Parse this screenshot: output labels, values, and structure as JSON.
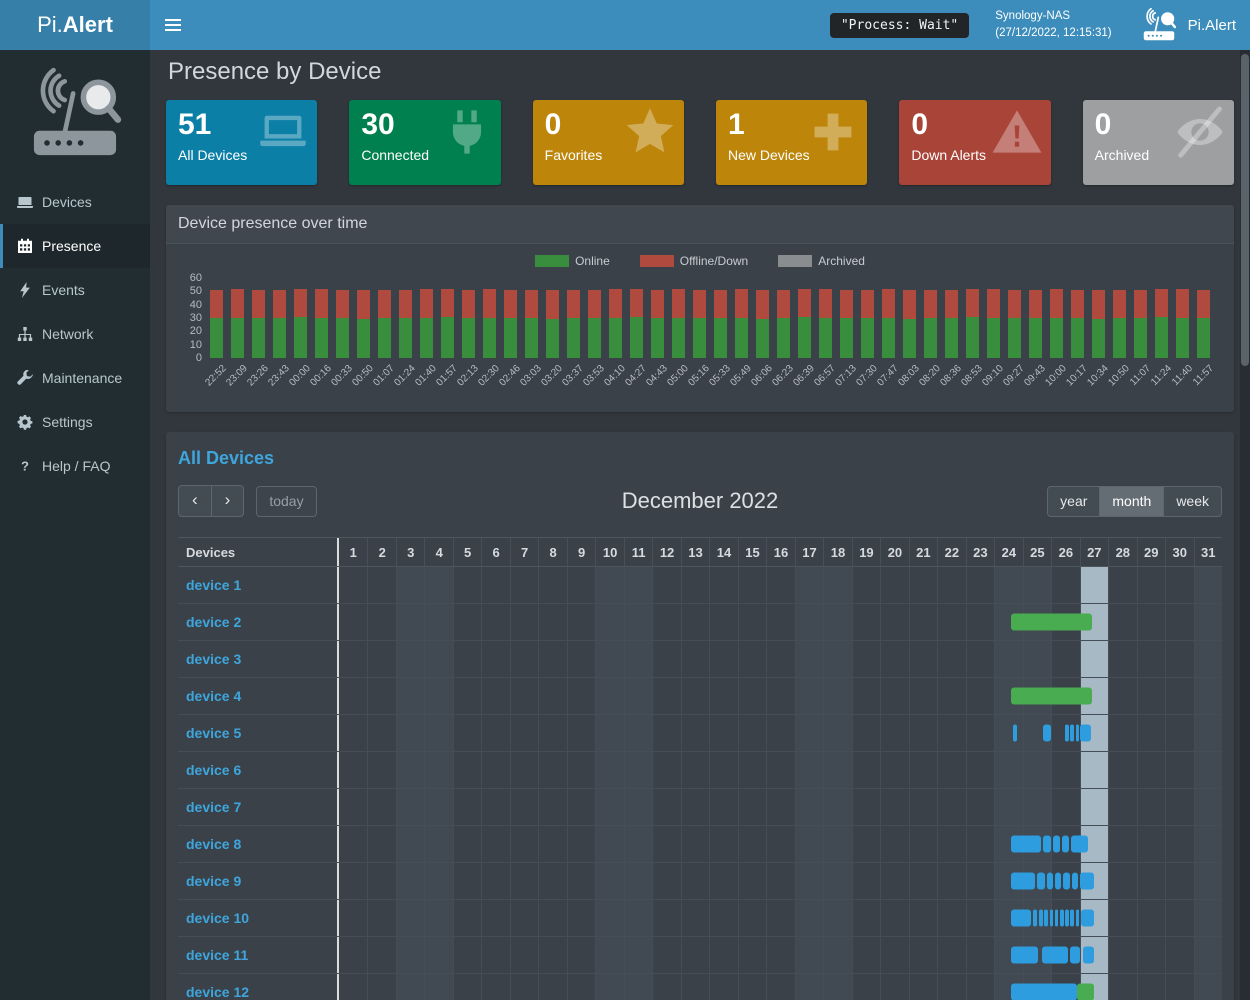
{
  "navbar": {
    "brand_pre": "Pi.",
    "brand_bold": "Alert",
    "process_status": "\"Process: Wait\"",
    "host_name": "Synology-NAS",
    "host_time": "(27/12/2022, 12:15:31)",
    "right_brand": "Pi.Alert"
  },
  "sidebar": {
    "items": [
      {
        "label": "Devices",
        "icon": "laptop-icon",
        "active": false
      },
      {
        "label": "Presence",
        "icon": "calendar-icon",
        "active": true
      },
      {
        "label": "Events",
        "icon": "bolt-icon",
        "active": false
      },
      {
        "label": "Network",
        "icon": "network-icon",
        "active": false
      },
      {
        "label": "Maintenance",
        "icon": "wrench-icon",
        "active": false
      },
      {
        "label": "Settings",
        "icon": "gear-icon",
        "active": false
      },
      {
        "label": "Help / FAQ",
        "icon": "question-icon",
        "active": false
      }
    ]
  },
  "page": {
    "title": "Presence by Device"
  },
  "summary_cards": [
    {
      "value": "51",
      "label": "All Devices",
      "color": "#0c7fa6",
      "icon": "laptop-icon"
    },
    {
      "value": "30",
      "label": "Connected",
      "color": "#00804e",
      "icon": "plug-icon"
    },
    {
      "value": "0",
      "label": "Favorites",
      "color": "#bd860b",
      "icon": "star-icon"
    },
    {
      "value": "1",
      "label": "New Devices",
      "color": "#bd860b",
      "icon": "plus-icon"
    },
    {
      "value": "0",
      "label": "Down Alerts",
      "color": "#a94438",
      "icon": "warning-icon"
    },
    {
      "value": "0",
      "label": "Archived",
      "color": "#9e9fa1",
      "icon": "eye-slash-icon"
    }
  ],
  "presence_panel": {
    "title": "Device presence over time"
  },
  "chart_data": {
    "type": "bar",
    "stacked": true,
    "title": "Device presence over time",
    "ylim": [
      0,
      60
    ],
    "y_ticks": [
      0,
      10,
      20,
      30,
      40,
      50,
      60
    ],
    "legend_position": "top",
    "grid": false,
    "categories": [
      "22:52",
      "23:09",
      "23:26",
      "23:43",
      "00:00",
      "00:16",
      "00:33",
      "00:50",
      "01:07",
      "01:24",
      "01:40",
      "01:57",
      "02:13",
      "02:30",
      "02:46",
      "03:03",
      "03:20",
      "03:37",
      "03:53",
      "04:10",
      "04:27",
      "04:43",
      "05:00",
      "05:16",
      "05:33",
      "05:49",
      "06:06",
      "06:23",
      "06:39",
      "06:57",
      "07:13",
      "07:30",
      "07:47",
      "08:03",
      "08:20",
      "08:36",
      "08:53",
      "09:10",
      "09:27",
      "09:43",
      "10:00",
      "10:17",
      "10:34",
      "10:50",
      "11:07",
      "11:24",
      "11:40",
      "11:57"
    ],
    "series": [
      {
        "name": "Online",
        "color": "#388e3c",
        "values": [
          30,
          30,
          30,
          30,
          31,
          30,
          30,
          29,
          30,
          30,
          30,
          31,
          30,
          30,
          30,
          30,
          29,
          30,
          30,
          30,
          31,
          30,
          30,
          30,
          30,
          30,
          29,
          30,
          31,
          30,
          30,
          30,
          30,
          29,
          30,
          30,
          31,
          30,
          30,
          30,
          30,
          30,
          29,
          30,
          30,
          31,
          30,
          30
        ]
      },
      {
        "name": "Offline/Down",
        "color": "#b04a3e",
        "values": [
          21,
          22,
          21,
          21,
          21,
          22,
          21,
          22,
          21,
          21,
          22,
          21,
          21,
          22,
          21,
          21,
          22,
          21,
          21,
          22,
          21,
          21,
          22,
          21,
          21,
          22,
          22,
          21,
          21,
          22,
          21,
          21,
          22,
          22,
          21,
          21,
          21,
          22,
          21,
          21,
          22,
          21,
          22,
          21,
          21,
          21,
          22,
          21
        ]
      },
      {
        "name": "Archived",
        "color": "#8a8d90",
        "values": [
          0,
          0,
          0,
          0,
          0,
          0,
          0,
          0,
          0,
          0,
          0,
          0,
          0,
          0,
          0,
          0,
          0,
          0,
          0,
          0,
          0,
          0,
          0,
          0,
          0,
          0,
          0,
          0,
          0,
          0,
          0,
          0,
          0,
          0,
          0,
          0,
          0,
          0,
          0,
          0,
          0,
          0,
          0,
          0,
          0,
          0,
          0,
          0
        ]
      }
    ]
  },
  "calendar": {
    "section_title": "All Devices",
    "toolbar": {
      "prev": "‹",
      "next": "›",
      "today_label": "today",
      "title": "December 2022",
      "views": [
        "year",
        "month",
        "week"
      ],
      "active_view": "month"
    },
    "header_device_col": "Devices",
    "num_days": 31,
    "weekend_days": [
      3,
      4,
      10,
      11,
      17,
      18,
      24,
      25,
      31
    ],
    "today_day": 27,
    "event_colors": {
      "green": "#49ac50",
      "blue": "#2d9de0"
    },
    "devices": [
      {
        "name": "device 1",
        "events": []
      },
      {
        "name": "device 2",
        "events": [
          {
            "start": 24.6,
            "end": 27.45,
            "color": "green"
          }
        ]
      },
      {
        "name": "device 3",
        "events": []
      },
      {
        "name": "device 4",
        "events": [
          {
            "start": 24.6,
            "end": 27.45,
            "color": "green"
          }
        ]
      },
      {
        "name": "device 5",
        "events": [
          {
            "start": 24.65,
            "end": 24.8,
            "color": "blue"
          },
          {
            "start": 25.7,
            "end": 26.0,
            "color": "blue"
          },
          {
            "start": 26.5,
            "end": 26.62,
            "color": "blue"
          },
          {
            "start": 26.68,
            "end": 26.8,
            "color": "blue"
          },
          {
            "start": 26.86,
            "end": 26.98,
            "color": "blue"
          },
          {
            "start": 27.03,
            "end": 27.4,
            "color": "blue"
          }
        ]
      },
      {
        "name": "device 6",
        "events": []
      },
      {
        "name": "device 7",
        "events": []
      },
      {
        "name": "device 8",
        "events": [
          {
            "start": 24.6,
            "end": 25.65,
            "color": "blue"
          },
          {
            "start": 25.72,
            "end": 26.0,
            "color": "blue"
          },
          {
            "start": 26.06,
            "end": 26.3,
            "color": "blue"
          },
          {
            "start": 26.38,
            "end": 26.64,
            "color": "blue"
          },
          {
            "start": 26.7,
            "end": 27.3,
            "color": "blue"
          }
        ]
      },
      {
        "name": "device 9",
        "events": [
          {
            "start": 24.6,
            "end": 25.45,
            "color": "blue"
          },
          {
            "start": 25.52,
            "end": 25.78,
            "color": "blue"
          },
          {
            "start": 25.85,
            "end": 26.08,
            "color": "blue"
          },
          {
            "start": 26.14,
            "end": 26.36,
            "color": "blue"
          },
          {
            "start": 26.43,
            "end": 26.66,
            "color": "blue"
          },
          {
            "start": 26.72,
            "end": 26.94,
            "color": "blue"
          },
          {
            "start": 27.0,
            "end": 27.5,
            "color": "blue"
          }
        ]
      },
      {
        "name": "device 10",
        "events": [
          {
            "start": 24.6,
            "end": 25.3,
            "color": "blue"
          },
          {
            "start": 25.38,
            "end": 25.52,
            "color": "blue"
          },
          {
            "start": 25.58,
            "end": 25.7,
            "color": "blue"
          },
          {
            "start": 25.76,
            "end": 25.88,
            "color": "blue"
          },
          {
            "start": 25.95,
            "end": 26.08,
            "color": "blue"
          },
          {
            "start": 26.14,
            "end": 26.26,
            "color": "blue"
          },
          {
            "start": 26.33,
            "end": 26.45,
            "color": "blue"
          },
          {
            "start": 26.5,
            "end": 26.62,
            "color": "blue"
          },
          {
            "start": 26.68,
            "end": 26.8,
            "color": "blue"
          },
          {
            "start": 26.86,
            "end": 26.98,
            "color": "blue"
          },
          {
            "start": 27.04,
            "end": 27.5,
            "color": "blue"
          }
        ]
      },
      {
        "name": "device 11",
        "events": [
          {
            "start": 24.6,
            "end": 25.55,
            "color": "blue"
          },
          {
            "start": 25.68,
            "end": 26.58,
            "color": "blue"
          },
          {
            "start": 26.68,
            "end": 27.02,
            "color": "blue"
          },
          {
            "start": 27.12,
            "end": 27.5,
            "color": "blue"
          }
        ]
      },
      {
        "name": "device 12",
        "events": [
          {
            "start": 24.6,
            "end": 26.9,
            "color": "blue"
          },
          {
            "start": 26.9,
            "end": 27.5,
            "color": "green"
          }
        ]
      }
    ]
  }
}
